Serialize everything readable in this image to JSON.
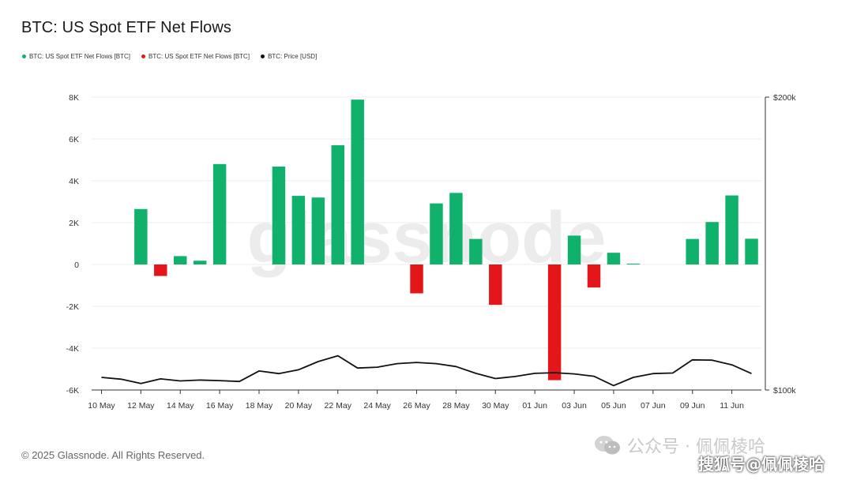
{
  "title": "BTC: US Spot ETF Net Flows",
  "legend": {
    "inflow": {
      "label": "BTC: US Spot ETF Net Flows [BTC]",
      "color": "#10b26b"
    },
    "outflow": {
      "label": "BTC: US Spot ETF Net Flows [BTC]",
      "color": "#e5161a"
    },
    "price": {
      "label": "BTC: Price [USD]",
      "color": "#111111"
    }
  },
  "watermark_text": "glassnode",
  "footer": "© 2025 Glassnode. All Rights Reserved.",
  "overlay_watermark": "公众号 · 佩佩棱哈",
  "overlay_watermark2": "搜狐号@佩佩棱哈",
  "chart_data": {
    "type": "bar",
    "title": "BTC: US Spot ETF Net Flows",
    "x_tick_labels": [
      "10 May",
      "12 May",
      "14 May",
      "16 May",
      "18 May",
      "20 May",
      "22 May",
      "24 May",
      "26 May",
      "28 May",
      "30 May",
      "01 Jun",
      "03 Jun",
      "05 Jun",
      "07 Jun",
      "09 Jun",
      "11 Jun"
    ],
    "x": [
      "10 May",
      "11 May",
      "12 May",
      "13 May",
      "14 May",
      "15 May",
      "16 May",
      "17 May",
      "18 May",
      "19 May",
      "20 May",
      "21 May",
      "22 May",
      "23 May",
      "24 May",
      "25 May",
      "26 May",
      "27 May",
      "28 May",
      "29 May",
      "30 May",
      "31 May",
      "01 Jun",
      "02 Jun",
      "03 Jun",
      "04 Jun",
      "05 Jun",
      "06 Jun",
      "07 Jun",
      "08 Jun",
      "09 Jun",
      "10 Jun",
      "11 Jun",
      "12 Jun"
    ],
    "series": [
      {
        "type": "bar",
        "values": [
          0,
          0,
          2650,
          -550,
          400,
          180,
          4800,
          0,
          0,
          4680,
          3280,
          3200,
          5700,
          7880,
          0,
          0,
          -1380,
          2920,
          3420,
          1220,
          -1930,
          0,
          0,
          -5530,
          1380,
          -1100,
          560,
          40,
          0,
          0,
          1220,
          2030,
          3300,
          1230
        ]
      },
      {
        "type": "line",
        "axis": "right",
        "values": [
          104300,
          103700,
          102200,
          103800,
          103100,
          103400,
          103200,
          102900,
          106500,
          105600,
          106900,
          109700,
          111700,
          107500,
          107800,
          109000,
          109400,
          109000,
          108000,
          105700,
          103900,
          104600,
          105700,
          105900,
          105500,
          104700,
          101500,
          104300,
          105600,
          105800,
          110300,
          110200,
          108600,
          105600
        ]
      }
    ],
    "ylim": [
      -6000,
      8000
    ],
    "y_ticks": [
      8000,
      6000,
      4000,
      2000,
      0,
      -2000,
      -4000,
      -6000
    ],
    "y_tick_labels": [
      "8K",
      "6K",
      "4K",
      "2K",
      "0",
      "-2K",
      "-4K",
      "-6K"
    ],
    "y2lim": [
      100000,
      200000
    ],
    "y2_tick_labels": [
      "$200k",
      "$100k"
    ],
    "grid": true,
    "legend_position": "top-left"
  }
}
